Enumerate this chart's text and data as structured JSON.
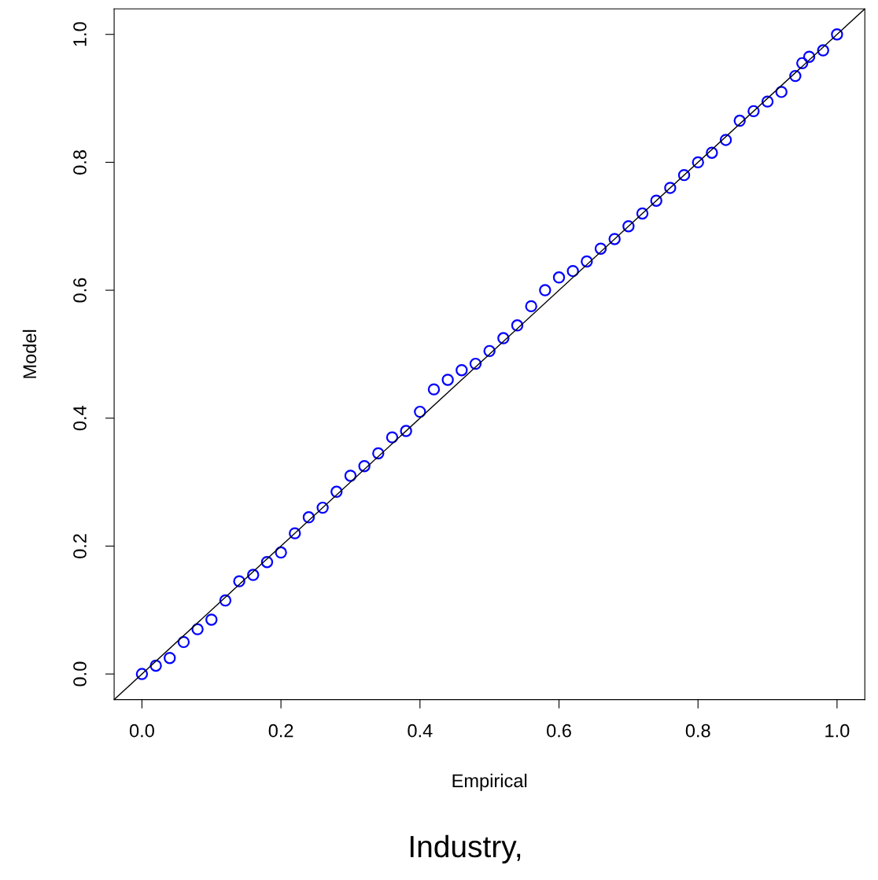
{
  "chart_data": {
    "type": "scatter",
    "xlabel": "Empirical",
    "ylabel": "Model",
    "annotations": [
      "Industry,"
    ],
    "xlim": [
      -0.04,
      1.04
    ],
    "ylim": [
      -0.04,
      1.04
    ],
    "xticks": [
      {
        "value": 0,
        "label": "0.0"
      },
      0.2,
      0.4,
      0.6,
      0.8,
      {
        "value": 1,
        "label": "1.0"
      }
    ],
    "yticks": [
      {
        "value": 0,
        "label": "0.0"
      },
      0.2,
      0.4,
      0.6,
      0.8,
      {
        "value": 1,
        "label": "1.0"
      }
    ],
    "grid": false,
    "legend": false,
    "marker": "circle",
    "series": [
      {
        "color": "#0000ff",
        "x": [
          0,
          0.02,
          0.04,
          0.06,
          0.08,
          0.1,
          0.12,
          0.14,
          0.16,
          0.18,
          0.2,
          0.22,
          0.24,
          0.26,
          0.28,
          0.3,
          0.32,
          0.34,
          0.36,
          0.38,
          0.4,
          0.42,
          0.44,
          0.46,
          0.48,
          0.5,
          0.52,
          0.54,
          0.56,
          0.58,
          0.6,
          0.62,
          0.64,
          0.66,
          0.68,
          0.7,
          0.72,
          0.74,
          0.76,
          0.78,
          0.8,
          0.82,
          0.84,
          0.86,
          0.88,
          0.9,
          0.92,
          0.94,
          0.95,
          0.96,
          0.98,
          1.0
        ],
        "values": [
          0,
          0.013,
          0.025,
          0.05,
          0.07,
          0.085,
          0.115,
          0.145,
          0.155,
          0.175,
          0.19,
          0.22,
          0.245,
          0.26,
          0.285,
          0.31,
          0.325,
          0.345,
          0.37,
          0.38,
          0.41,
          0.445,
          0.46,
          0.475,
          0.485,
          0.505,
          0.525,
          0.545,
          0.575,
          0.6,
          0.62,
          0.63,
          0.645,
          0.665,
          0.68,
          0.7,
          0.72,
          0.74,
          0.76,
          0.78,
          0.8,
          0.815,
          0.835,
          0.865,
          0.88,
          0.895,
          0.91,
          0.935,
          0.955,
          0.965,
          0.975,
          1.0
        ]
      },
      {
        "type": "line",
        "color": "#000000",
        "marker": "none",
        "line_style": "solid",
        "x": [
          -0.04,
          1.04
        ],
        "values": [
          -0.04,
          1.04
        ]
      }
    ]
  }
}
